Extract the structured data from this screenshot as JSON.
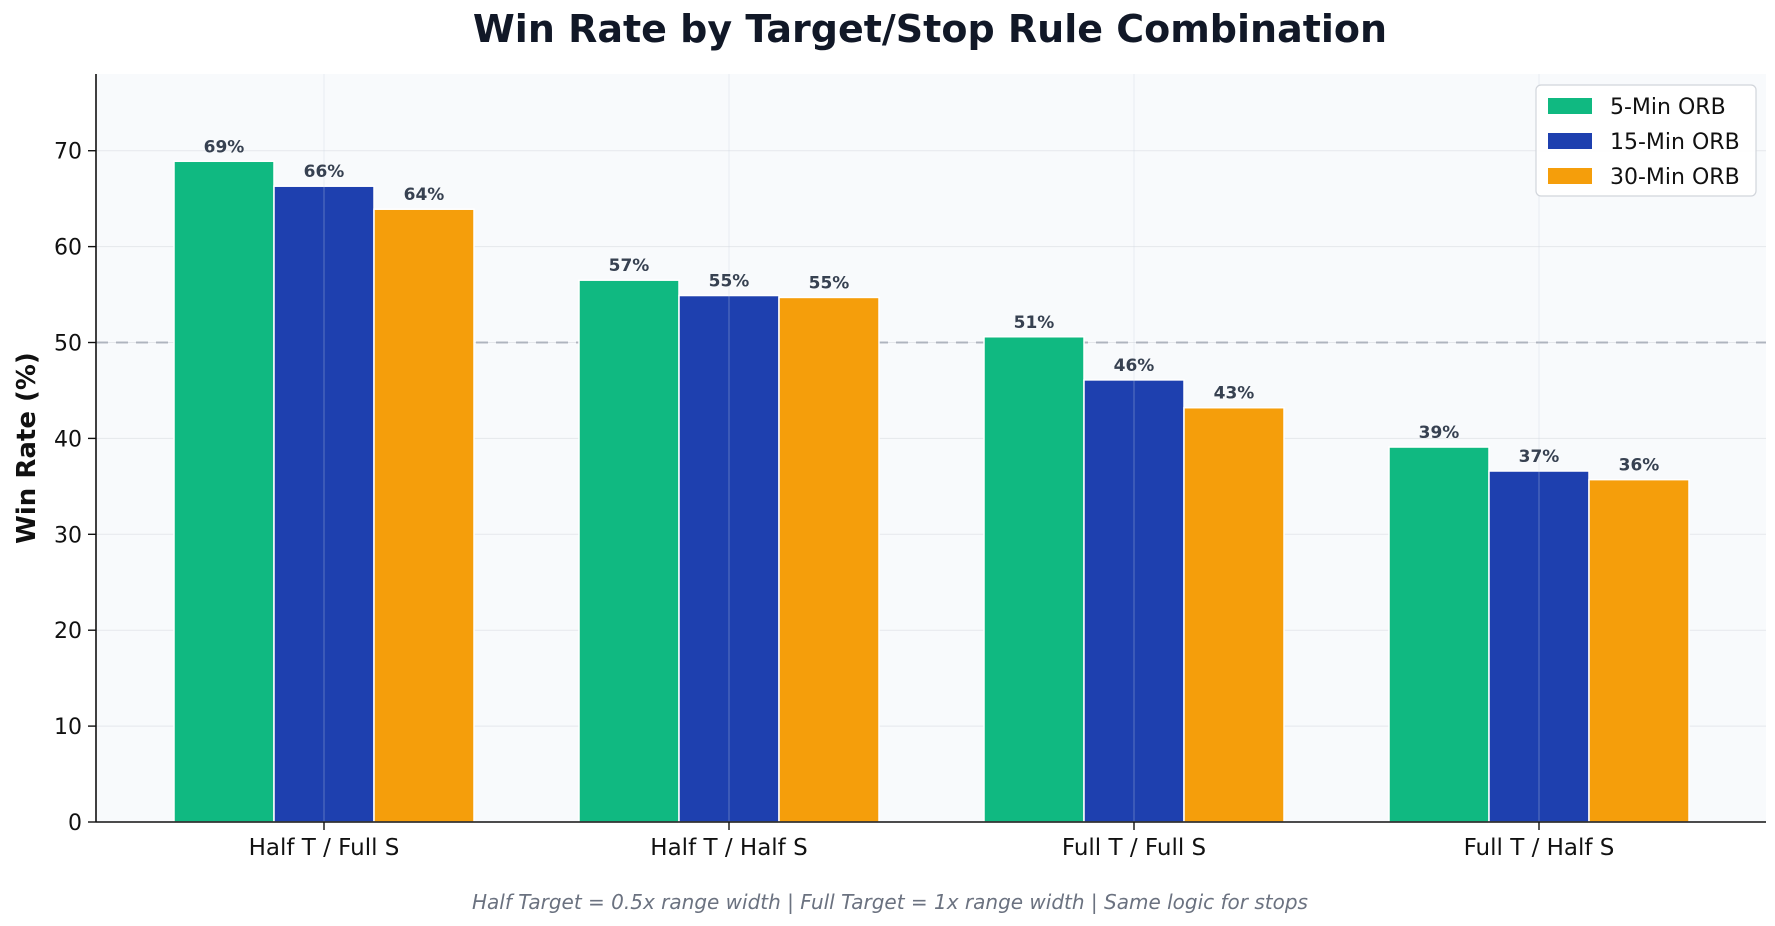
{
  "chart_data": {
    "type": "bar",
    "title": "Win Rate by Target/Stop Rule Combination",
    "xlabel": "",
    "ylabel": "Win Rate (%)",
    "ylim": [
      0,
      78
    ],
    "yticks": [
      0,
      10,
      20,
      30,
      40,
      50,
      60,
      70
    ],
    "grid": true,
    "reference_line": {
      "y": 50,
      "style": "dashed"
    },
    "legend_position": "top-right",
    "categories": [
      "Half T / Full S",
      "Half T / Half S",
      "Full T / Full S",
      "Full T / Half S"
    ],
    "series": [
      {
        "name": "5-Min ORB",
        "color": "#10b981",
        "values": [
          68.9,
          56.5,
          50.6,
          39.1
        ],
        "labels": [
          "69%",
          "57%",
          "51%",
          "39%"
        ]
      },
      {
        "name": "15-Min ORB",
        "color": "#1e40af",
        "values": [
          66.3,
          54.9,
          46.1,
          36.6
        ],
        "labels": [
          "66%",
          "55%",
          "46%",
          "37%"
        ]
      },
      {
        "name": "30-Min ORB",
        "color": "#f59e0b",
        "values": [
          63.9,
          54.7,
          43.2,
          35.7
        ],
        "labels": [
          "64%",
          "55%",
          "43%",
          "36%"
        ]
      }
    ],
    "footnote": "Half Target = 0.5x range width | Full Target = 1x range width | Same logic for stops"
  }
}
